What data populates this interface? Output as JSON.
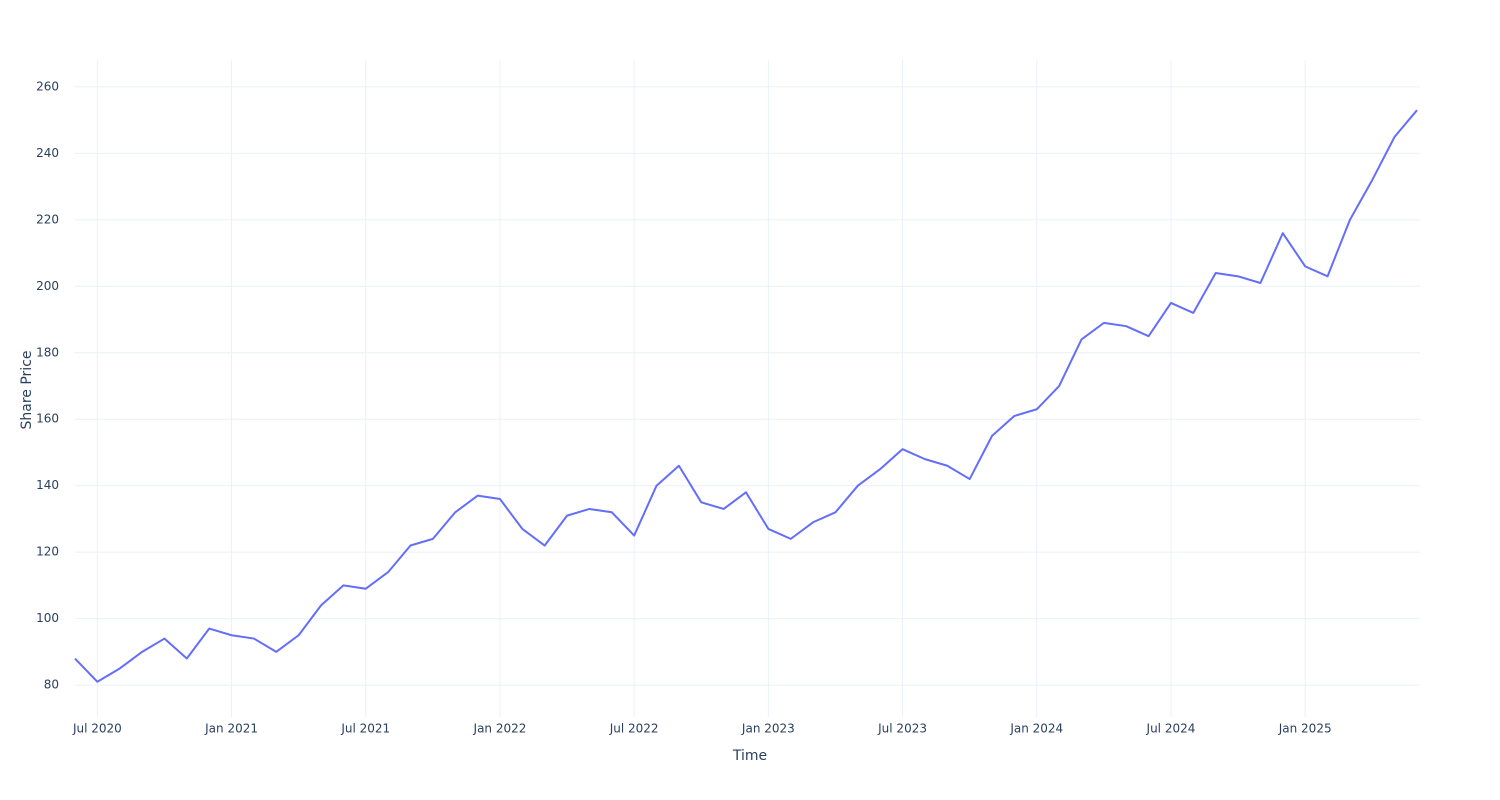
{
  "chart_data": {
    "type": "line",
    "x_label": "Time",
    "y_label": "Share Price",
    "x": [
      "2020-06",
      "2020-07",
      "2020-08",
      "2020-09",
      "2020-10",
      "2020-11",
      "2020-12",
      "2021-01",
      "2021-02",
      "2021-03",
      "2021-04",
      "2021-05",
      "2021-06",
      "2021-07",
      "2021-08",
      "2021-09",
      "2021-10",
      "2021-11",
      "2021-12",
      "2022-01",
      "2022-02",
      "2022-03",
      "2022-04",
      "2022-05",
      "2022-06",
      "2022-07",
      "2022-08",
      "2022-09",
      "2022-10",
      "2022-11",
      "2022-12",
      "2023-01",
      "2023-02",
      "2023-03",
      "2023-04",
      "2023-05",
      "2023-06",
      "2023-07",
      "2023-08",
      "2023-09",
      "2023-10",
      "2023-11",
      "2023-12",
      "2024-01",
      "2024-02",
      "2024-03",
      "2024-04",
      "2024-05",
      "2024-06",
      "2024-07",
      "2024-08",
      "2024-09",
      "2024-10",
      "2024-11",
      "2024-12",
      "2025-01",
      "2025-02",
      "2025-03",
      "2025-04",
      "2025-05",
      "2025-06"
    ],
    "series": [
      {
        "name": "Share Price",
        "color": "#636efa",
        "values": [
          88,
          81,
          85,
          90,
          94,
          88,
          97,
          95,
          94,
          90,
          95,
          104,
          110,
          109,
          114,
          122,
          124,
          132,
          137,
          136,
          127,
          122,
          131,
          133,
          132,
          125,
          140,
          146,
          135,
          133,
          138,
          127,
          124,
          129,
          132,
          140,
          145,
          151,
          148,
          146,
          142,
          155,
          161,
          163,
          170,
          184,
          189,
          188,
          185,
          195,
          192,
          204,
          203,
          201,
          216,
          206,
          203,
          220,
          232,
          245,
          253
        ]
      }
    ],
    "xlim": [
      "2020-06",
      "2025-06"
    ],
    "xticks": [
      {
        "value": "2020-07",
        "label": "Jul 2020"
      },
      {
        "value": "2021-01",
        "label": "Jan 2021"
      },
      {
        "value": "2021-07",
        "label": "Jul 2021"
      },
      {
        "value": "2022-01",
        "label": "Jan 2022"
      },
      {
        "value": "2022-07",
        "label": "Jul 2022"
      },
      {
        "value": "2023-01",
        "label": "Jan 2023"
      },
      {
        "value": "2023-07",
        "label": "Jul 2023"
      },
      {
        "value": "2024-01",
        "label": "Jan 2024"
      },
      {
        "value": "2024-07",
        "label": "Jul 2024"
      },
      {
        "value": "2025-01",
        "label": "Jan 2025"
      }
    ],
    "ylim": [
      70.4,
      268.1
    ],
    "yticks": [
      80,
      100,
      120,
      140,
      160,
      180,
      200,
      220,
      240,
      260
    ],
    "grid": true
  }
}
